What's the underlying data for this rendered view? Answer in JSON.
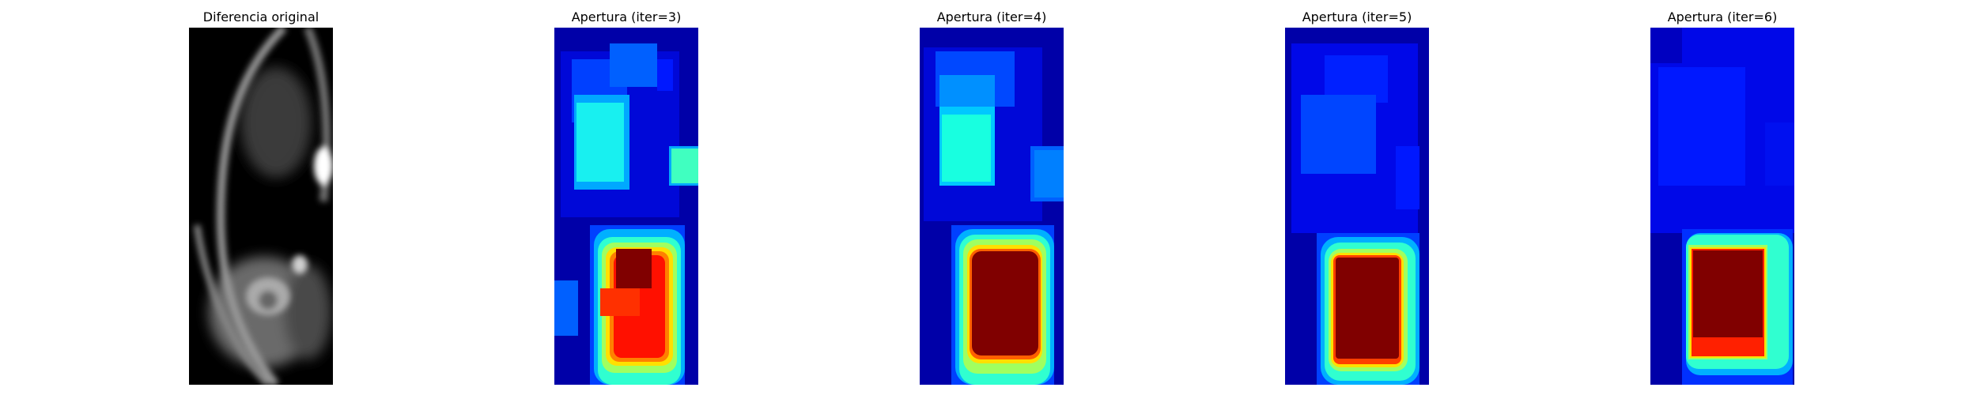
{
  "figure": {
    "panels": [
      {
        "title": "Diferencia original"
      },
      {
        "title": "Apertura (iter=3)"
      },
      {
        "title": "Apertura (iter=4)"
      },
      {
        "title": "Apertura (iter=5)"
      },
      {
        "title": "Apertura (iter=6)"
      }
    ]
  }
}
